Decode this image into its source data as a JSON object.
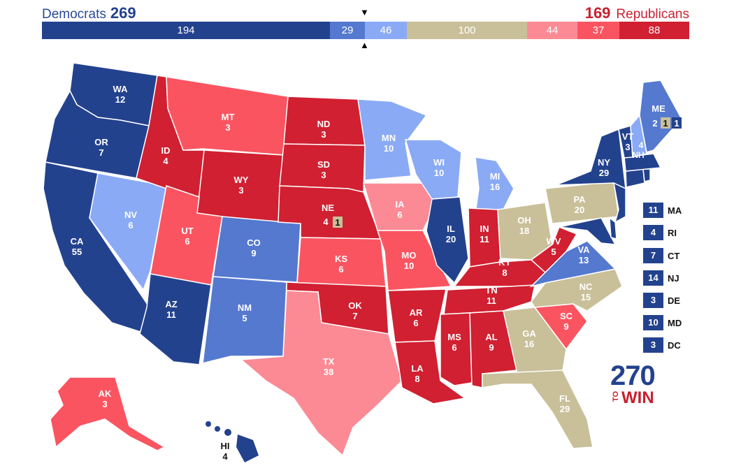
{
  "header": {
    "dem_label": "Democrats",
    "dem_total": "269",
    "rep_total": "169",
    "rep_label": "Republicans"
  },
  "bar": [
    {
      "value": "194",
      "color": "#23428e"
    },
    {
      "value": "29",
      "color": "#5579cf"
    },
    {
      "value": "46",
      "color": "#8aaaf5"
    },
    {
      "value": "100",
      "color": "#c9bf99"
    },
    {
      "value": "44",
      "color": "#fc8a95"
    },
    {
      "value": "37",
      "color": "#fb5461"
    },
    {
      "value": "88",
      "color": "#d02031"
    }
  ],
  "markers": {
    "top": "▼",
    "bottom": "▲"
  },
  "states": {
    "WA": {
      "abbr": "WA",
      "ev": "12"
    },
    "OR": {
      "abbr": "OR",
      "ev": "7"
    },
    "CA": {
      "abbr": "CA",
      "ev": "55"
    },
    "NV": {
      "abbr": "NV",
      "ev": "6"
    },
    "ID": {
      "abbr": "ID",
      "ev": "4"
    },
    "MT": {
      "abbr": "MT",
      "ev": "3"
    },
    "WY": {
      "abbr": "WY",
      "ev": "3"
    },
    "UT": {
      "abbr": "UT",
      "ev": "6"
    },
    "AZ": {
      "abbr": "AZ",
      "ev": "11"
    },
    "CO": {
      "abbr": "CO",
      "ev": "9"
    },
    "NM": {
      "abbr": "NM",
      "ev": "5"
    },
    "ND": {
      "abbr": "ND",
      "ev": "3"
    },
    "SD": {
      "abbr": "SD",
      "ev": "3"
    },
    "NE": {
      "abbr": "NE",
      "ev": "4",
      "split": "1"
    },
    "KS": {
      "abbr": "KS",
      "ev": "6"
    },
    "OK": {
      "abbr": "OK",
      "ev": "7"
    },
    "TX": {
      "abbr": "TX",
      "ev": "38"
    },
    "MN": {
      "abbr": "MN",
      "ev": "10"
    },
    "IA": {
      "abbr": "IA",
      "ev": "6"
    },
    "MO": {
      "abbr": "MO",
      "ev": "10"
    },
    "AR": {
      "abbr": "AR",
      "ev": "6"
    },
    "LA": {
      "abbr": "LA",
      "ev": "8"
    },
    "WI": {
      "abbr": "WI",
      "ev": "10"
    },
    "IL": {
      "abbr": "IL",
      "ev": "20"
    },
    "MI": {
      "abbr": "MI",
      "ev": "16"
    },
    "IN": {
      "abbr": "IN",
      "ev": "11"
    },
    "OH": {
      "abbr": "OH",
      "ev": "18"
    },
    "KY": {
      "abbr": "KY",
      "ev": "8"
    },
    "TN": {
      "abbr": "TN",
      "ev": "11"
    },
    "MS": {
      "abbr": "MS",
      "ev": "6"
    },
    "AL": {
      "abbr": "AL",
      "ev": "9"
    },
    "GA": {
      "abbr": "GA",
      "ev": "16"
    },
    "FL": {
      "abbr": "FL",
      "ev": "29"
    },
    "SC": {
      "abbr": "SC",
      "ev": "9"
    },
    "NC": {
      "abbr": "NC",
      "ev": "15"
    },
    "VA": {
      "abbr": "VA",
      "ev": "13"
    },
    "WV": {
      "abbr": "WV",
      "ev": "5"
    },
    "PA": {
      "abbr": "PA",
      "ev": "20"
    },
    "NY": {
      "abbr": "NY",
      "ev": "29"
    },
    "VT": {
      "abbr": "VT",
      "ev": "3"
    },
    "NH": {
      "abbr": "NH",
      "ev": "4"
    },
    "ME": {
      "abbr": "ME",
      "ev": "2",
      "split_a": "1",
      "split_b": "1"
    },
    "AK": {
      "abbr": "AK",
      "ev": "3"
    },
    "HI": {
      "abbr": "HI",
      "ev": "4"
    }
  },
  "small_states": [
    {
      "ev": "11",
      "abbr": "MA"
    },
    {
      "ev": "4",
      "abbr": "RI"
    },
    {
      "ev": "7",
      "abbr": "CT"
    },
    {
      "ev": "14",
      "abbr": "NJ"
    },
    {
      "ev": "3",
      "abbr": "DE"
    },
    {
      "ev": "10",
      "abbr": "MD"
    },
    {
      "ev": "3",
      "abbr": "DC"
    }
  ],
  "logo": {
    "number": "270",
    "to": "TO",
    "win": "WIN"
  },
  "colors": {
    "safe_dem": "#23428e",
    "likely_dem": "#5579cf",
    "lean_dem": "#8aaaf5",
    "tossup": "#c9bf99",
    "lean_rep": "#fc8a95",
    "likely_rep": "#fb5461",
    "safe_rep": "#d02031"
  }
}
